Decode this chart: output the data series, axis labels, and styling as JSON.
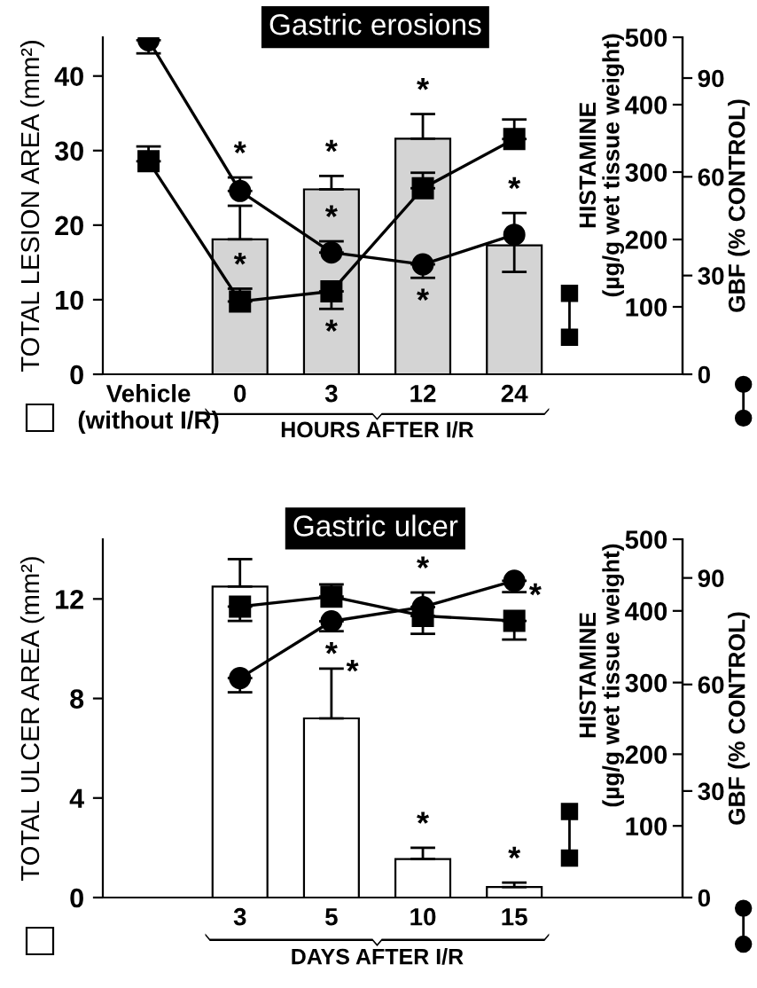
{
  "chart_data": [
    {
      "type": "bar",
      "title": "Gastric erosions",
      "categories": [
        "Vehicle\n(without I/R)",
        "0",
        "3",
        "12",
        "24"
      ],
      "xlabel": "HOURS AFTER I/R",
      "ylabel": "TOTAL LESION AREA (mm²)",
      "y2label": "HISTAMINE\n(µg/g wet tissue weight)",
      "y3label": "GBF (% CONTROL)",
      "ylim": [
        0,
        45.2
      ],
      "yticks": [
        0,
        10,
        20,
        30,
        40
      ],
      "y2lim": [
        0,
        500
      ],
      "y2ticks": [
        100,
        200,
        300,
        400,
        500
      ],
      "y3lim": [
        0,
        102.4
      ],
      "y3ticks": [
        0,
        30,
        60,
        90
      ],
      "series": [
        {
          "color": "#d4d4d4",
          "values": [
            null,
            18.1,
            24.8,
            31.6,
            17.3
          ],
          "errors": [
            null,
            [
              18.1,
              22.6
            ],
            [
              24.8,
              26.6
            ],
            [
              31.6,
              34.9
            ],
            null
          ],
          "value_labels": [
            null,
            null,
            "*",
            "*",
            null
          ]
        },
        {
          "type": "line",
          "axis": "y2",
          "marker": "square",
          "color": "#000000",
          "values": [
            316,
            108,
            123,
            276,
            349
          ],
          "errors": [
            [
              316,
              338
            ],
            [
              108,
              127
            ],
            [
              97,
              123
            ],
            [
              276,
              299
            ],
            [
              349,
              378
            ]
          ],
          "value_labels": [
            null,
            "*",
            "*",
            null,
            null
          ]
        },
        {
          "type": "line",
          "axis": "y3",
          "marker": "circle",
          "color": "#000000",
          "values": [
            101.5,
            55.7,
            37.0,
            33.4,
            42.4
          ],
          "errors": [
            [
              97.5,
              101.5
            ],
            [
              55.7,
              59.8
            ],
            [
              37.0,
              40.4
            ],
            [
              29.3,
              33.4
            ],
            [
              31.1,
              49
            ]
          ],
          "value_labels": [
            null,
            "*",
            "*",
            "*",
            "*"
          ]
        }
      ],
      "grid": false,
      "legend": false
    },
    {
      "type": "bar",
      "title": "Gastric ulcer",
      "categories": [
        null,
        "3",
        "5",
        "10",
        "15"
      ],
      "xlabel": "DAYS AFTER I/R",
      "ylabel": "TOTAL ULCER AREA (mm²)",
      "y2label": "HISTAMINE\n(µg/g wet tissue weight)",
      "y3label": "GBF (% CONTROL)",
      "ylim": [
        0,
        14.4
      ],
      "yticks": [
        0,
        4,
        8,
        12
      ],
      "y2lim": [
        0,
        500
      ],
      "y2ticks": [
        100,
        200,
        300,
        400,
        500
      ],
      "y3lim": [
        0,
        100.9
      ],
      "y3ticks": [
        0,
        30,
        60,
        90
      ],
      "series": [
        {
          "color": "#ffffff",
          "values": [
            null,
            12.5,
            7.2,
            1.55,
            0.42
          ],
          "errors": [
            null,
            [
              12.5,
              13.6
            ],
            [
              7.2,
              9.2
            ],
            [
              1.55,
              2.0
            ],
            [
              0.42,
              0.6
            ]
          ],
          "value_labels": [
            null,
            null,
            "*",
            "*",
            "*"
          ]
        },
        {
          "type": "line",
          "axis": "y2",
          "marker": "square",
          "color": "#000000",
          "values": [
            null,
            406,
            420,
            393,
            386
          ],
          "errors": [
            null,
            [
              386,
              406
            ],
            [
              420,
              437
            ],
            [
              368,
              393
            ],
            [
              360,
              386
            ]
          ]
        },
        {
          "type": "line",
          "axis": "y3",
          "marker": "circle",
          "color": "#000000",
          "values": [
            null,
            61.8,
            77.8,
            81.8,
            89.2
          ],
          "errors": [
            null,
            [
              57.8,
              61.8
            ],
            [
              75,
              77.8
            ],
            [
              81.8,
              85.9
            ],
            [
              86,
              89.2
            ]
          ],
          "value_labels": [
            null,
            null,
            "*",
            "*",
            "*"
          ]
        }
      ],
      "grid": false,
      "legend": false
    }
  ]
}
